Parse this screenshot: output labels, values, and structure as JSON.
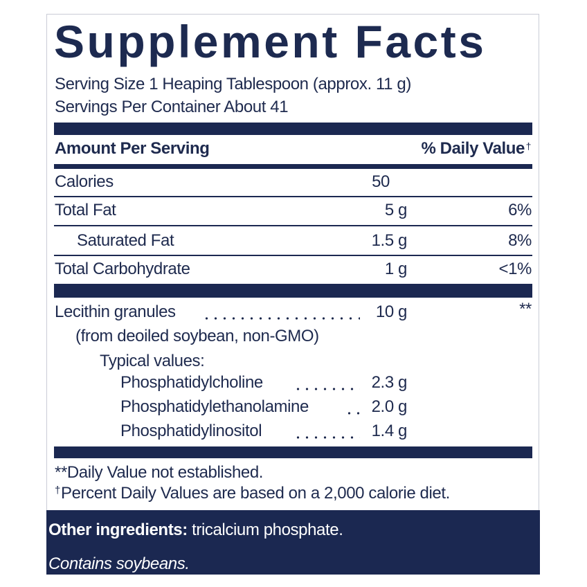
{
  "header": {
    "title": "Supplement Facts",
    "serving_size": "Serving Size 1 Heaping Tablespoon (approx. 11 g)",
    "servings_per_container": "Servings Per Container About 41"
  },
  "table": {
    "amount_header": "Amount Per Serving",
    "dv_header": "% Daily Value",
    "dv_header_mark": "†",
    "rows": [
      [
        "Calories",
        "50",
        ""
      ],
      [
        "Total Fat",
        "5 g",
        "6%"
      ],
      [
        "Saturated Fat",
        "1.5 g",
        "8%"
      ],
      [
        "Total Carbohydrate",
        "1 g",
        "<1%"
      ]
    ],
    "lecithin": {
      "name": "Lecithin granules",
      "amount": "10 g",
      "dv": "**",
      "source": "(from deoiled soybean, non-GMO)",
      "typical_label": "Typical values:",
      "components": [
        [
          "Phosphatidylcholine",
          "2.3 g"
        ],
        [
          "Phosphatidylethanolamine",
          "2.0 g"
        ],
        [
          "Phosphatidylinositol",
          "1.4 g"
        ]
      ]
    }
  },
  "footnotes": {
    "not_established": "**Daily Value not established.",
    "dagger": "†",
    "percent_basis": "Percent Daily Values are based on a 2,000 calorie diet."
  },
  "footer": {
    "other_label": "Other ingredients:",
    "other_value": " tricalcium phosphate.",
    "allergen": "Contains soybeans."
  }
}
